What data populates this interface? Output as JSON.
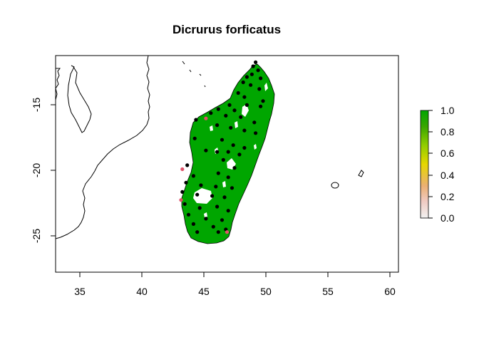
{
  "title": "Dicrurus forficatus",
  "x_ticks": [
    "35",
    "40",
    "45",
    "50",
    "55",
    "60"
  ],
  "y_ticks": [
    "-15",
    "-20",
    "-25"
  ],
  "colorbar": {
    "ticks": [
      "0.0",
      "0.2",
      "0.4",
      "0.6",
      "0.8",
      "1.0"
    ],
    "colors": [
      "#f2f2f2",
      "#f0c9c0",
      "#ebb072",
      "#e6d700",
      "#8fcc00",
      "#3aa600",
      "#00a600"
    ]
  },
  "map_colors": {
    "suitable": "#00a600",
    "occurrence": "#000000",
    "occurrence_alt": "#df536b"
  },
  "chart_data": {
    "type": "map",
    "title": "Dicrurus forficatus",
    "xlim": [
      33.2,
      60.8
    ],
    "ylim": [
      -28.0,
      -11.8
    ],
    "x_ticks": [
      35,
      40,
      45,
      50,
      55,
      60
    ],
    "y_ticks": [
      -15,
      -20,
      -25
    ],
    "colorbar_range": [
      0,
      1
    ],
    "highlighted_points": [
      {
        "lon": 45.3,
        "lat": -16.5
      },
      {
        "lon": 43.4,
        "lat": -20.3
      },
      {
        "lon": 43.3,
        "lat": -22.6
      },
      {
        "lon": 47.0,
        "lat": -25.0
      }
    ],
    "points": [
      {
        "lon": 49.3,
        "lat": -12.3
      },
      {
        "lon": 49.1,
        "lat": -12.6
      },
      {
        "lon": 49.5,
        "lat": -12.9
      },
      {
        "lon": 49.0,
        "lat": -13.2
      },
      {
        "lon": 48.6,
        "lat": -13.4
      },
      {
        "lon": 49.7,
        "lat": -13.5
      },
      {
        "lon": 48.3,
        "lat": -13.8
      },
      {
        "lon": 48.9,
        "lat": -14.0
      },
      {
        "lon": 49.6,
        "lat": -14.3
      },
      {
        "lon": 47.9,
        "lat": -14.6
      },
      {
        "lon": 48.4,
        "lat": -14.9
      },
      {
        "lon": 49.9,
        "lat": -15.2
      },
      {
        "lon": 47.2,
        "lat": -15.5
      },
      {
        "lon": 48.6,
        "lat": -15.5
      },
      {
        "lon": 49.7,
        "lat": -15.6
      },
      {
        "lon": 46.3,
        "lat": -15.8
      },
      {
        "lon": 47.6,
        "lat": -15.9
      },
      {
        "lon": 45.7,
        "lat": -16.1
      },
      {
        "lon": 46.9,
        "lat": -16.3
      },
      {
        "lon": 48.1,
        "lat": -16.4
      },
      {
        "lon": 44.5,
        "lat": -16.6
      },
      {
        "lon": 49.2,
        "lat": -16.8
      },
      {
        "lon": 46.2,
        "lat": -17.0
      },
      {
        "lon": 47.3,
        "lat": -17.2
      },
      {
        "lon": 48.4,
        "lat": -17.4
      },
      {
        "lon": 49.3,
        "lat": -17.6
      },
      {
        "lon": 44.4,
        "lat": -18.0
      },
      {
        "lon": 46.6,
        "lat": -18.1
      },
      {
        "lon": 47.5,
        "lat": -18.5
      },
      {
        "lon": 48.4,
        "lat": -18.7
      },
      {
        "lon": 45.3,
        "lat": -18.9
      },
      {
        "lon": 46.2,
        "lat": -19.0
      },
      {
        "lon": 47.1,
        "lat": -19.0
      },
      {
        "lon": 48.0,
        "lat": -19.2
      },
      {
        "lon": 46.7,
        "lat": -19.6
      },
      {
        "lon": 43.8,
        "lat": -20.0
      },
      {
        "lon": 47.6,
        "lat": -20.2
      },
      {
        "lon": 44.3,
        "lat": -20.8
      },
      {
        "lon": 46.3,
        "lat": -20.6
      },
      {
        "lon": 47.1,
        "lat": -20.9
      },
      {
        "lon": 43.7,
        "lat": -21.3
      },
      {
        "lon": 44.9,
        "lat": -21.5
      },
      {
        "lon": 46.1,
        "lat": -21.6
      },
      {
        "lon": 47.4,
        "lat": -21.7
      },
      {
        "lon": 43.4,
        "lat": -22.0
      },
      {
        "lon": 44.6,
        "lat": -22.2
      },
      {
        "lon": 45.8,
        "lat": -22.3
      },
      {
        "lon": 46.8,
        "lat": -22.4
      },
      {
        "lon": 43.6,
        "lat": -22.9
      },
      {
        "lon": 44.8,
        "lat": -23.2
      },
      {
        "lon": 46.2,
        "lat": -23.1
      },
      {
        "lon": 47.1,
        "lat": -23.4
      },
      {
        "lon": 43.9,
        "lat": -23.7
      },
      {
        "lon": 45.3,
        "lat": -24.0
      },
      {
        "lon": 46.6,
        "lat": -24.1
      },
      {
        "lon": 44.3,
        "lat": -24.4
      },
      {
        "lon": 45.9,
        "lat": -24.6
      },
      {
        "lon": 46.9,
        "lat": -24.8
      },
      {
        "lon": 44.6,
        "lat": -25.0
      },
      {
        "lon": 46.3,
        "lat": -25.0
      }
    ]
  }
}
